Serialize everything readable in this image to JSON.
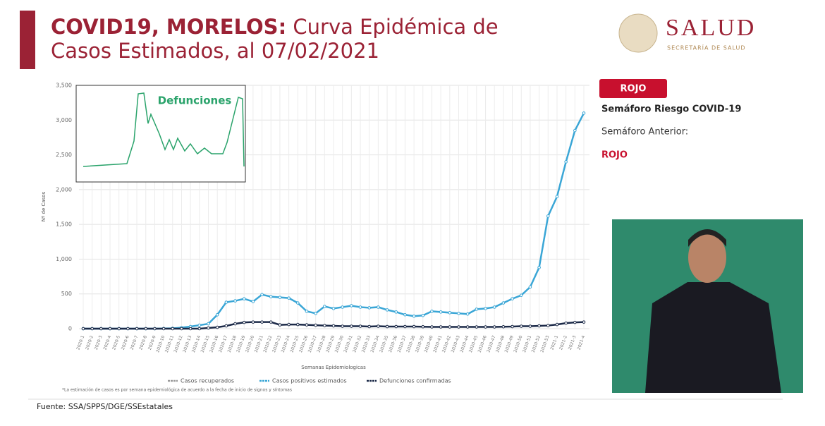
{
  "header": {
    "title_bold": "COVID19, MORELOS:",
    "title_rest_1": "Curva Epidémica de",
    "title_line_2": "Casos Estimados, al 07/02/2021",
    "logo": "SALUD",
    "logo_sub": "SECRETARÍA DE SALUD"
  },
  "panel": {
    "badge": "ROJO",
    "risk": "Semáforo Riesgo COVID-19",
    "previous": "Semáforo Anterior:",
    "previous_value": "ROJO"
  },
  "inset": {
    "title": "Defunciones"
  },
  "note": "*La estimación de casos es por semana epidemiológica de acuerdo a la fecha de inicio de signos y síntomas",
  "source": "Fuente: SSA/SPPS/DGE/SSEstatales",
  "chart_data": {
    "type": "line",
    "x_label": "Semanas Epidemiologicas",
    "y_label": "Nº de Casos",
    "categories": [
      "2020-1",
      "2020-2",
      "2020-3",
      "2020-4",
      "2020-5",
      "2020-6",
      "2020-7",
      "2020-8",
      "2020-9",
      "2020-10",
      "2020-11",
      "2020-12",
      "2020-13",
      "2020-14",
      "2020-15",
      "2020-16",
      "2020-17",
      "2020-18",
      "2020-19",
      "2020-20",
      "2020-21",
      "2020-22",
      "2020-23",
      "2020-24",
      "2020-25",
      "2020-26",
      "2020-27",
      "2020-28",
      "2020-29",
      "2020-30",
      "2020-31",
      "2020-32",
      "2020-33",
      "2020-34",
      "2020-35",
      "2020-36",
      "2020-37",
      "2020-38",
      "2020-39",
      "2020-40",
      "2020-41",
      "2020-42",
      "2020-43",
      "2020-44",
      "2020-45",
      "2020-46",
      "2020-47",
      "2020-48",
      "2020-49",
      "2020-50",
      "2020-51",
      "2020-52",
      "2020-53",
      "2021-1",
      "2021-2",
      "2021-3",
      "2021-4"
    ],
    "series": [
      {
        "name": "Casos recuperados",
        "color": "#9a9a9a",
        "values": [
          null,
          null,
          null,
          null,
          null,
          null,
          null,
          null,
          null,
          null,
          null,
          null,
          null,
          null,
          null,
          null,
          null,
          null,
          null,
          null,
          null,
          null,
          null,
          null,
          null,
          null,
          null,
          null,
          null,
          null,
          null,
          null,
          null,
          null,
          null,
          null,
          null,
          null,
          null,
          null,
          null,
          null,
          null,
          null,
          null,
          null,
          null,
          null,
          null,
          null,
          null,
          null,
          null,
          null,
          null,
          null,
          null
        ]
      },
      {
        "name": "Casos positivos estimados",
        "color": "#3aa6d6",
        "values": [
          0,
          0,
          0,
          0,
          0,
          0,
          0,
          0,
          0,
          2,
          5,
          15,
          30,
          50,
          70,
          200,
          380,
          400,
          430,
          390,
          490,
          460,
          450,
          440,
          370,
          250,
          220,
          320,
          290,
          310,
          330,
          310,
          300,
          310,
          270,
          240,
          200,
          180,
          190,
          250,
          240,
          230,
          220,
          210,
          280,
          290,
          310,
          370,
          430,
          480,
          600,
          880,
          1620,
          1900,
          2400,
          2850,
          3100
        ]
      },
      {
        "name": "Defunciones confirmadas",
        "color": "#1c2a48",
        "values": [
          0,
          0,
          0,
          0,
          0,
          0,
          0,
          0,
          0,
          0,
          0,
          0,
          0,
          0,
          10,
          20,
          40,
          70,
          90,
          95,
          95,
          95,
          55,
          60,
          60,
          55,
          50,
          45,
          40,
          35,
          35,
          35,
          30,
          35,
          30,
          30,
          30,
          30,
          28,
          25,
          25,
          25,
          25,
          25,
          25,
          25,
          25,
          28,
          30,
          35,
          35,
          40,
          45,
          60,
          80,
          90,
          95
        ]
      }
    ],
    "ylim": [
      0,
      3500
    ],
    "yticks": [
      0,
      {
        "value": 500,
        "label": "500"
      },
      {
        "value": 1000,
        "label": "1,000"
      },
      {
        "value": 1500,
        "label": "1,500"
      },
      {
        "value": 2000,
        "label": "2,000"
      },
      {
        "value": 2500,
        "label": "2,500"
      },
      {
        "value": 3000,
        "label": "3,000"
      },
      {
        "value": 3500,
        "label": "3,500"
      }
    ],
    "grid": true
  }
}
